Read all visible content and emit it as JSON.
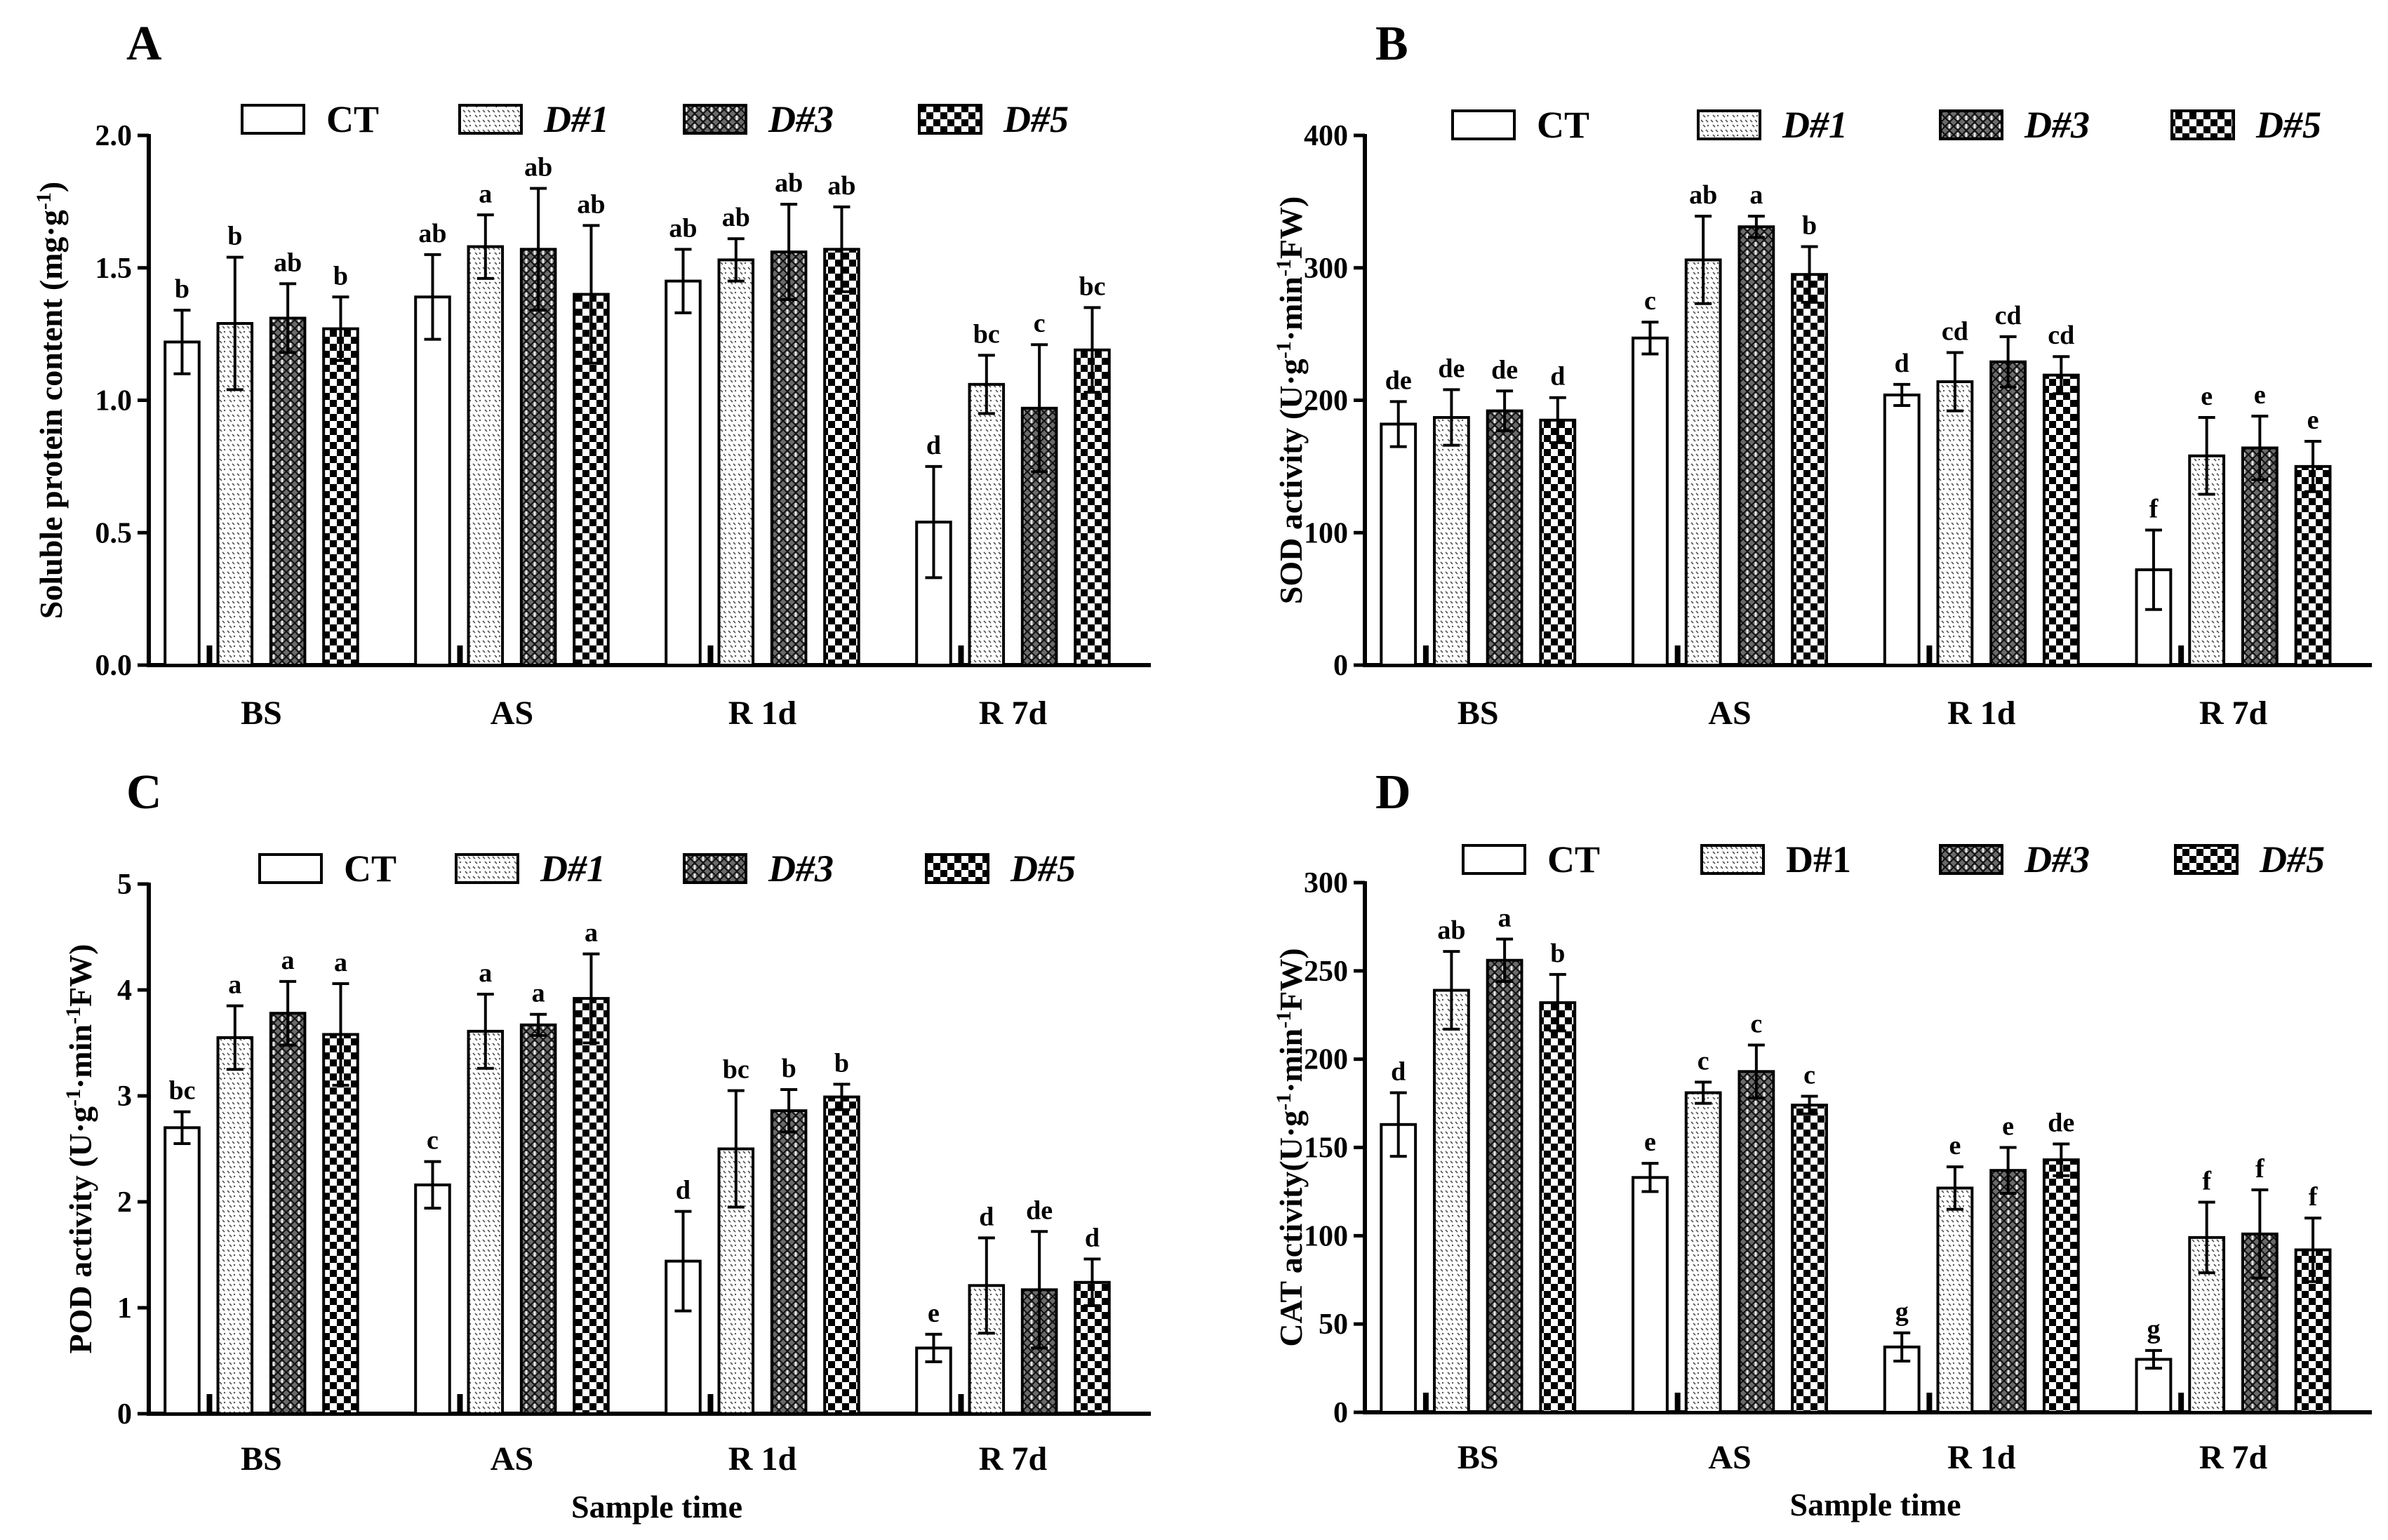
{
  "series_styles": [
    {
      "name": "CT",
      "pattern": "none"
    },
    {
      "name": "D#1",
      "pattern": "dots"
    },
    {
      "name": "D#3",
      "pattern": "crosshatch"
    },
    {
      "name": "D#5",
      "pattern": "checker"
    }
  ],
  "chart_data": [
    {
      "panel": "A",
      "type": "bar",
      "categories": [
        "BS",
        "AS",
        "R 1d",
        "R 7d"
      ],
      "ylabel_parts": [
        "Soluble protein content (mg·g",
        "-1",
        ")"
      ],
      "xlabel": "",
      "ylim": [
        0,
        2.0
      ],
      "yticks": [
        "0.0",
        "0.5",
        "1.0",
        "1.5",
        "2.0"
      ],
      "legend": [
        "CT",
        "D#1",
        "D#3",
        "D#5"
      ],
      "legend_italic": [
        false,
        true,
        true,
        true
      ],
      "series": [
        {
          "name": "CT",
          "values": [
            1.22,
            1.39,
            1.45,
            0.54
          ],
          "errors": [
            0.12,
            0.16,
            0.12,
            0.21
          ],
          "letters": [
            "b",
            "ab",
            "ab",
            "d"
          ]
        },
        {
          "name": "D#1",
          "values": [
            1.29,
            1.58,
            1.53,
            1.06
          ],
          "errors": [
            0.25,
            0.12,
            0.08,
            0.11
          ],
          "letters": [
            "b",
            "a",
            "ab",
            "bc"
          ]
        },
        {
          "name": "D#3",
          "values": [
            1.31,
            1.57,
            1.56,
            0.97
          ],
          "errors": [
            0.13,
            0.23,
            0.18,
            0.24
          ],
          "letters": [
            "ab",
            "ab",
            "ab",
            "c"
          ]
        },
        {
          "name": "D#5",
          "values": [
            1.27,
            1.4,
            1.57,
            1.19
          ],
          "errors": [
            0.12,
            0.26,
            0.16,
            0.16
          ],
          "letters": [
            "b",
            "ab",
            "ab",
            "bc"
          ]
        }
      ]
    },
    {
      "panel": "B",
      "type": "bar",
      "categories": [
        "BS",
        "AS",
        "R 1d",
        "R 7d"
      ],
      "ylabel_parts": [
        "SOD activity (U·g",
        "-1",
        "·min",
        "-1",
        "FW)"
      ],
      "xlabel": "",
      "ylim": [
        0,
        400
      ],
      "yticks": [
        "0",
        "100",
        "200",
        "300",
        "400"
      ],
      "legend": [
        "CT",
        "D#1",
        "D#3",
        "D#5"
      ],
      "legend_italic": [
        false,
        true,
        true,
        true
      ],
      "series": [
        {
          "name": "CT",
          "values": [
            182,
            247,
            204,
            72
          ],
          "errors": [
            17,
            12,
            8,
            30
          ],
          "letters": [
            "de",
            "c",
            "d",
            "f"
          ]
        },
        {
          "name": "D#1",
          "values": [
            187,
            306,
            214,
            158
          ],
          "errors": [
            21,
            33,
            22,
            29
          ],
          "letters": [
            "de",
            "ab",
            "cd",
            "e"
          ]
        },
        {
          "name": "D#3",
          "values": [
            192,
            331,
            229,
            164
          ],
          "errors": [
            15,
            8,
            19,
            24
          ],
          "letters": [
            "de",
            "a",
            "cd",
            "e"
          ]
        },
        {
          "name": "D#5",
          "values": [
            185,
            295,
            219,
            150
          ],
          "errors": [
            17,
            21,
            14,
            19
          ],
          "letters": [
            "d",
            "b",
            "cd",
            "e"
          ]
        }
      ]
    },
    {
      "panel": "C",
      "type": "bar",
      "categories": [
        "BS",
        "AS",
        "R 1d",
        "R 7d"
      ],
      "ylabel_parts": [
        "POD activity (U·g",
        "-1",
        "·min",
        "-1",
        "FW)"
      ],
      "xlabel": "Sample time",
      "ylim": [
        0,
        5
      ],
      "yticks": [
        "0",
        "1",
        "2",
        "3",
        "4",
        "5"
      ],
      "legend": [
        "CT",
        "D#1",
        "D#3",
        "D#5"
      ],
      "legend_italic": [
        false,
        true,
        true,
        true
      ],
      "series": [
        {
          "name": "CT",
          "values": [
            2.7,
            2.16,
            1.44,
            0.62
          ],
          "errors": [
            0.15,
            0.22,
            0.47,
            0.13
          ],
          "letters": [
            "bc",
            "c",
            "d",
            "e"
          ]
        },
        {
          "name": "D#1",
          "values": [
            3.55,
            3.61,
            2.5,
            1.21
          ],
          "errors": [
            0.3,
            0.35,
            0.55,
            0.45
          ],
          "letters": [
            "a",
            "a",
            "bc",
            "d"
          ]
        },
        {
          "name": "D#3",
          "values": [
            3.78,
            3.67,
            2.86,
            1.17
          ],
          "errors": [
            0.3,
            0.1,
            0.2,
            0.55
          ],
          "letters": [
            "a",
            "a",
            "b",
            "de"
          ]
        },
        {
          "name": "D#5",
          "values": [
            3.58,
            3.92,
            2.99,
            1.24
          ],
          "errors": [
            0.48,
            0.42,
            0.12,
            0.22
          ],
          "letters": [
            "a",
            "a",
            "b",
            "d"
          ]
        }
      ]
    },
    {
      "panel": "D",
      "type": "bar",
      "categories": [
        "BS",
        "AS",
        "R 1d",
        "R 7d"
      ],
      "ylabel_parts": [
        "CAT activity(U·g",
        "-1",
        "·min",
        "-1",
        "FW)"
      ],
      "xlabel": "Sample time",
      "ylim": [
        0,
        300
      ],
      "yticks": [
        "0",
        "50",
        "100",
        "150",
        "200",
        "250",
        "300"
      ],
      "legend": [
        "CT",
        "D#1",
        "D#3",
        "D#5"
      ],
      "legend_italic": [
        false,
        false,
        true,
        true
      ],
      "series": [
        {
          "name": "CT",
          "values": [
            163,
            133,
            37,
            30
          ],
          "errors": [
            18,
            8,
            8,
            5
          ],
          "letters": [
            "d",
            "e",
            "g",
            "g"
          ]
        },
        {
          "name": "D#1",
          "values": [
            239,
            181,
            127,
            99
          ],
          "errors": [
            22,
            6,
            12,
            20
          ],
          "letters": [
            "ab",
            "c",
            "e",
            "f"
          ]
        },
        {
          "name": "D#3",
          "values": [
            256,
            193,
            137,
            101
          ],
          "errors": [
            12,
            15,
            13,
            25
          ],
          "letters": [
            "a",
            "c",
            "e",
            "f"
          ]
        },
        {
          "name": "D#5",
          "values": [
            232,
            174,
            143,
            92
          ],
          "errors": [
            16,
            5,
            9,
            18
          ],
          "letters": [
            "b",
            "c",
            "de",
            "f"
          ]
        }
      ]
    }
  ]
}
